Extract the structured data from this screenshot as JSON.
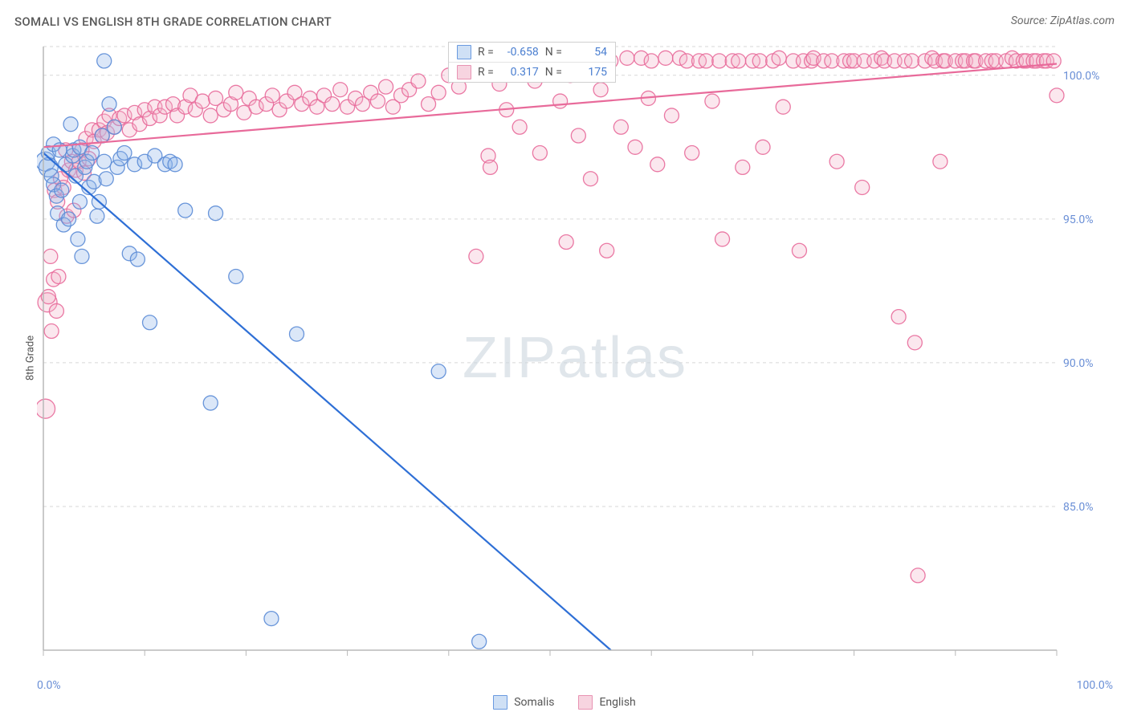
{
  "title": "SOMALI VS ENGLISH 8TH GRADE CORRELATION CHART",
  "source": "Source: ZipAtlas.com",
  "ylabel": "8th Grade",
  "watermark": {
    "part1": "ZIP",
    "part2": "atlas"
  },
  "chart": {
    "type": "scatter",
    "xlim": [
      0,
      100
    ],
    "ylim": [
      80,
      101
    ],
    "y_ticks": [
      85.0,
      90.0,
      95.0,
      100.0
    ],
    "y_tick_labels": [
      "85.0%",
      "90.0%",
      "95.0%",
      "100.0%"
    ],
    "x_ticks": [
      0,
      10,
      20,
      30,
      40,
      50,
      60,
      70,
      80,
      90,
      100
    ],
    "x_end_labels": [
      "0.0%",
      "100.0%"
    ],
    "background_color": "#ffffff",
    "grid_color": "#d7d7d7",
    "axis_color": "#b8b8b8",
    "tick_label_color": "#6a8fd6",
    "marker_radius": 9,
    "marker_radius_large": 12,
    "series": {
      "somalis": {
        "label": "Somalis",
        "fill": "#8fb5e8",
        "stroke": "#5a8bd6",
        "trend_color": "#2e6fd6",
        "trend": {
          "x1": 0,
          "y1": 97.3,
          "x2": 56,
          "y2": 80.0
        },
        "R": "-0.658",
        "N": "54",
        "points": [
          [
            0.2,
            97.0
          ],
          [
            0.5,
            96.8
          ],
          [
            0.5,
            97.3
          ],
          [
            0.8,
            96.5
          ],
          [
            1.0,
            96.2
          ],
          [
            1.0,
            97.6
          ],
          [
            1.3,
            95.8
          ],
          [
            1.4,
            95.2
          ],
          [
            1.6,
            97.4
          ],
          [
            1.8,
            96.0
          ],
          [
            2.0,
            94.8
          ],
          [
            2.2,
            96.9
          ],
          [
            2.5,
            95.0
          ],
          [
            2.7,
            98.3
          ],
          [
            2.9,
            97.2
          ],
          [
            3.0,
            97.4
          ],
          [
            3.2,
            96.5
          ],
          [
            3.4,
            94.3
          ],
          [
            3.6,
            95.6
          ],
          [
            3.6,
            97.5
          ],
          [
            3.8,
            93.7
          ],
          [
            4.1,
            96.8
          ],
          [
            4.3,
            97.0
          ],
          [
            4.5,
            96.1
          ],
          [
            4.8,
            97.3
          ],
          [
            5.0,
            96.3
          ],
          [
            5.3,
            95.1
          ],
          [
            5.5,
            95.6
          ],
          [
            5.8,
            97.9
          ],
          [
            6.0,
            97.0
          ],
          [
            6.2,
            96.4
          ],
          [
            6.5,
            99.0
          ],
          [
            7.0,
            98.2
          ],
          [
            7.3,
            96.8
          ],
          [
            7.6,
            97.1
          ],
          [
            8.0,
            97.3
          ],
          [
            8.5,
            93.8
          ],
          [
            9.0,
            96.9
          ],
          [
            9.3,
            93.6
          ],
          [
            10.0,
            97.0
          ],
          [
            10.5,
            91.4
          ],
          [
            11.0,
            97.2
          ],
          [
            12.0,
            96.9
          ],
          [
            12.5,
            97.0
          ],
          [
            13.0,
            96.9
          ],
          [
            14.0,
            95.3
          ],
          [
            16.5,
            88.6
          ],
          [
            17.0,
            95.2
          ],
          [
            19.0,
            93.0
          ],
          [
            25.0,
            91.0
          ],
          [
            39.0,
            89.7
          ],
          [
            22.5,
            81.1
          ],
          [
            43.0,
            80.3
          ],
          [
            6.0,
            100.5
          ]
        ]
      },
      "english": {
        "label": "English",
        "fill": "#f4b5ca",
        "stroke": "#e86a9a",
        "trend_color": "#e86a9a",
        "trend": {
          "x1": 0,
          "y1": 97.5,
          "x2": 100,
          "y2": 100.4
        },
        "R": "0.317",
        "N": "175",
        "points": [
          [
            0.2,
            88.4
          ],
          [
            0.4,
            92.1
          ],
          [
            0.5,
            92.3
          ],
          [
            0.7,
            93.7
          ],
          [
            0.8,
            91.1
          ],
          [
            1.0,
            92.9
          ],
          [
            1.1,
            96.0
          ],
          [
            1.3,
            91.8
          ],
          [
            1.4,
            95.6
          ],
          [
            1.5,
            93.0
          ],
          [
            1.7,
            96.4
          ],
          [
            2.0,
            96.1
          ],
          [
            2.2,
            97.4
          ],
          [
            2.3,
            95.1
          ],
          [
            2.5,
            96.7
          ],
          [
            2.8,
            97.0
          ],
          [
            3.0,
            95.3
          ],
          [
            3.2,
            96.7
          ],
          [
            3.5,
            97.0
          ],
          [
            3.8,
            97.4
          ],
          [
            4.0,
            96.6
          ],
          [
            4.2,
            97.8
          ],
          [
            4.5,
            97.1
          ],
          [
            4.8,
            98.1
          ],
          [
            5.0,
            97.7
          ],
          [
            5.5,
            98.1
          ],
          [
            5.8,
            97.9
          ],
          [
            6.0,
            98.4
          ],
          [
            6.3,
            98.0
          ],
          [
            6.5,
            98.6
          ],
          [
            7.0,
            98.2
          ],
          [
            7.5,
            98.5
          ],
          [
            8.0,
            98.6
          ],
          [
            8.5,
            98.1
          ],
          [
            9.0,
            98.7
          ],
          [
            9.5,
            98.3
          ],
          [
            10.0,
            98.8
          ],
          [
            10.5,
            98.5
          ],
          [
            11.0,
            98.9
          ],
          [
            11.5,
            98.6
          ],
          [
            12.0,
            98.9
          ],
          [
            12.8,
            99.0
          ],
          [
            13.2,
            98.6
          ],
          [
            14.0,
            98.9
          ],
          [
            14.5,
            99.3
          ],
          [
            15.0,
            98.8
          ],
          [
            15.7,
            99.1
          ],
          [
            16.5,
            98.6
          ],
          [
            17.0,
            99.2
          ],
          [
            17.8,
            98.8
          ],
          [
            18.5,
            99.0
          ],
          [
            19.0,
            99.4
          ],
          [
            19.8,
            98.7
          ],
          [
            20.3,
            99.2
          ],
          [
            21.0,
            98.9
          ],
          [
            22.0,
            99.0
          ],
          [
            22.6,
            99.3
          ],
          [
            23.3,
            98.8
          ],
          [
            24.0,
            99.1
          ],
          [
            24.8,
            99.4
          ],
          [
            25.5,
            99.0
          ],
          [
            26.3,
            99.2
          ],
          [
            27.0,
            98.9
          ],
          [
            27.7,
            99.3
          ],
          [
            28.5,
            99.0
          ],
          [
            29.3,
            99.5
          ],
          [
            30.0,
            98.9
          ],
          [
            30.8,
            99.2
          ],
          [
            31.5,
            99.0
          ],
          [
            32.3,
            99.4
          ],
          [
            33.0,
            99.1
          ],
          [
            33.8,
            99.6
          ],
          [
            34.5,
            98.9
          ],
          [
            35.3,
            99.3
          ],
          [
            36.1,
            99.5
          ],
          [
            37.0,
            99.8
          ],
          [
            38.0,
            99.0
          ],
          [
            39.0,
            99.4
          ],
          [
            40.0,
            100.0
          ],
          [
            41.0,
            99.6
          ],
          [
            42.0,
            100.4
          ],
          [
            42.7,
            93.7
          ],
          [
            43.0,
            100.5
          ],
          [
            43.9,
            97.2
          ],
          [
            44.1,
            96.8
          ],
          [
            45.0,
            99.7
          ],
          [
            45.7,
            98.8
          ],
          [
            46.0,
            100.5
          ],
          [
            47.0,
            98.2
          ],
          [
            47.5,
            100.5
          ],
          [
            48.5,
            99.8
          ],
          [
            49.0,
            97.3
          ],
          [
            50.1,
            100.6
          ],
          [
            51.0,
            99.1
          ],
          [
            51.6,
            94.2
          ],
          [
            52.0,
            100.0
          ],
          [
            52.8,
            97.9
          ],
          [
            53.6,
            100.5
          ],
          [
            54.0,
            96.4
          ],
          [
            55.0,
            99.5
          ],
          [
            55.6,
            93.9
          ],
          [
            56.0,
            100.5
          ],
          [
            57.0,
            98.2
          ],
          [
            57.6,
            100.6
          ],
          [
            58.4,
            97.5
          ],
          [
            59.0,
            100.6
          ],
          [
            59.7,
            99.2
          ],
          [
            60.0,
            100.5
          ],
          [
            60.6,
            96.9
          ],
          [
            61.4,
            100.6
          ],
          [
            62.0,
            98.6
          ],
          [
            62.8,
            100.6
          ],
          [
            63.5,
            100.5
          ],
          [
            64.0,
            97.3
          ],
          [
            64.7,
            100.5
          ],
          [
            65.4,
            100.5
          ],
          [
            66.0,
            99.1
          ],
          [
            66.7,
            100.5
          ],
          [
            67.0,
            94.3
          ],
          [
            68.0,
            100.5
          ],
          [
            68.6,
            100.5
          ],
          [
            69.0,
            96.8
          ],
          [
            70.0,
            100.5
          ],
          [
            70.7,
            100.5
          ],
          [
            71.0,
            97.5
          ],
          [
            72.0,
            100.5
          ],
          [
            72.6,
            100.6
          ],
          [
            73.0,
            98.9
          ],
          [
            74.0,
            100.5
          ],
          [
            74.6,
            93.9
          ],
          [
            75.0,
            100.5
          ],
          [
            75.8,
            100.5
          ],
          [
            76.0,
            100.6
          ],
          [
            77.0,
            100.5
          ],
          [
            77.8,
            100.5
          ],
          [
            78.3,
            97.0
          ],
          [
            79.0,
            100.5
          ],
          [
            79.6,
            100.5
          ],
          [
            80.0,
            100.5
          ],
          [
            80.8,
            96.1
          ],
          [
            81.0,
            100.5
          ],
          [
            82.0,
            100.5
          ],
          [
            82.7,
            100.6
          ],
          [
            83.0,
            100.5
          ],
          [
            84.0,
            100.5
          ],
          [
            84.4,
            91.6
          ],
          [
            85.0,
            100.5
          ],
          [
            85.7,
            100.5
          ],
          [
            86.0,
            90.7
          ],
          [
            87.0,
            100.5
          ],
          [
            87.7,
            100.6
          ],
          [
            88.0,
            100.5
          ],
          [
            88.8,
            100.5
          ],
          [
            89.0,
            100.5
          ],
          [
            86.3,
            82.6
          ],
          [
            90.0,
            100.5
          ],
          [
            90.7,
            100.5
          ],
          [
            91.0,
            100.5
          ],
          [
            91.8,
            100.5
          ],
          [
            92.0,
            100.5
          ],
          [
            93.0,
            100.5
          ],
          [
            93.6,
            100.5
          ],
          [
            94.0,
            100.5
          ],
          [
            88.5,
            97.0
          ],
          [
            95.0,
            100.5
          ],
          [
            95.6,
            100.6
          ],
          [
            96.0,
            100.5
          ],
          [
            96.7,
            100.5
          ],
          [
            97.0,
            100.5
          ],
          [
            97.7,
            100.5
          ],
          [
            98.0,
            100.5
          ],
          [
            98.7,
            100.5
          ],
          [
            99.0,
            100.5
          ],
          [
            99.7,
            100.5
          ],
          [
            100.0,
            99.3
          ]
        ]
      }
    }
  },
  "stats_box": {
    "rows": [
      {
        "series": "somalis",
        "R_label": "R =",
        "R": "-0.658",
        "N_label": "N =",
        "N": "54"
      },
      {
        "series": "english",
        "R_label": "R =",
        "R": "0.317",
        "N_label": "N =",
        "N": "175"
      }
    ]
  },
  "bottom_legend": [
    {
      "series": "somalis",
      "label": "Somalis"
    },
    {
      "series": "english",
      "label": "English"
    }
  ]
}
